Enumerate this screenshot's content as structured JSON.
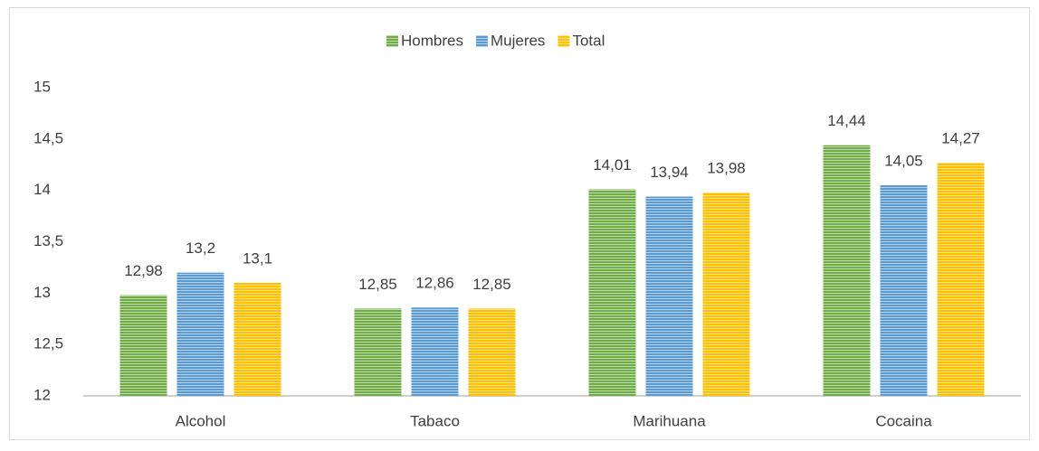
{
  "chart_data": {
    "type": "bar",
    "categories": [
      "Alcohol",
      "Tabaco",
      "Marihuana",
      "Cocaina"
    ],
    "series": [
      {
        "name": "Hombres",
        "color": "#70ad47",
        "values": [
          12.98,
          12.85,
          14.01,
          14.44
        ],
        "value_labels": [
          "12,98",
          "12,85",
          "14,01",
          "14,44"
        ]
      },
      {
        "name": "Mujeres",
        "color": "#5b9bd5",
        "values": [
          13.2,
          12.86,
          13.94,
          14.05
        ],
        "value_labels": [
          "13,2",
          "12,86",
          "13,94",
          "14,05"
        ]
      },
      {
        "name": "Total",
        "color": "#ffc000",
        "values": [
          13.1,
          12.85,
          13.98,
          14.27
        ],
        "value_labels": [
          "13,1",
          "12,85",
          "13,98",
          "14,27"
        ]
      }
    ],
    "ylim": [
      12,
      15
    ],
    "yticks": [
      12,
      {
        "value": 12.5,
        "label": "12,5"
      },
      13,
      {
        "value": 13.5,
        "label": "13,5"
      },
      14,
      {
        "value": 14.5,
        "label": "14,5"
      },
      15
    ],
    "grid": false,
    "legend": "top"
  }
}
